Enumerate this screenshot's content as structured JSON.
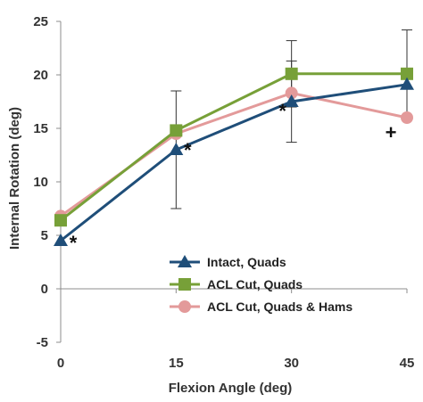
{
  "chart_data": {
    "type": "line",
    "title": "",
    "xlabel": "Flexion Angle (deg)",
    "ylabel": "Internal Rotation (deg)",
    "x": [
      0,
      15,
      30,
      45
    ],
    "xlim": [
      0,
      45
    ],
    "ylim": [
      -5,
      25
    ],
    "x_ticks": [
      "0",
      "15",
      "30",
      "45"
    ],
    "y_ticks": [
      "-5",
      "0",
      "5",
      "10",
      "15",
      "20",
      "25"
    ],
    "grid": false,
    "legend_position": "bottom-right",
    "series": [
      {
        "name": "Intact, Quads",
        "values": [
          4.5,
          13.0,
          17.5,
          19.1
        ],
        "error": [
          null,
          5.5,
          3.8,
          null
        ],
        "color": "#1f4e79",
        "marker": "triangle"
      },
      {
        "name": "ACL Cut, Quads",
        "values": [
          6.4,
          14.8,
          20.1,
          20.1
        ],
        "error": [
          null,
          null,
          3.1,
          4.1
        ],
        "color": "#77a038",
        "marker": "square"
      },
      {
        "name": "ACL Cut, Quads & Hams",
        "values": [
          6.8,
          14.5,
          18.3,
          16.0
        ],
        "error": [
          null,
          null,
          null,
          null
        ],
        "color": "#e39a9a",
        "marker": "circle"
      }
    ],
    "annotations": [
      {
        "text": "*",
        "x": 0,
        "y": 4.5
      },
      {
        "text": "*",
        "x": 15,
        "y": 13.0
      },
      {
        "text": "*",
        "x": 30,
        "y": 17.5
      },
      {
        "text": "+",
        "x": 45,
        "y": 16.0
      }
    ]
  }
}
